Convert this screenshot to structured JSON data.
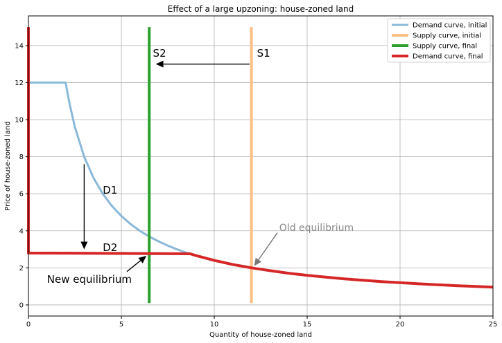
{
  "chart_data": {
    "type": "line",
    "title": "Effect of a large upzoning: house-zoned land",
    "xlabel": "Quantity of house-zoned land",
    "ylabel": "Price of house-zoned land",
    "xlim": [
      0,
      25
    ],
    "ylim": [
      -0.6,
      15.6
    ],
    "xticks": [
      0,
      5,
      10,
      15,
      20,
      25
    ],
    "yticks": [
      0,
      2,
      4,
      6,
      8,
      10,
      12,
      14
    ],
    "grid": true,
    "legend_position": "top-right",
    "series": [
      {
        "name": "Demand curve, initial",
        "color": "#8ab8d9",
        "width": 3,
        "x": [
          0,
          2.0,
          2.2,
          2.5,
          3.0,
          3.5,
          4.0,
          4.5,
          5.0,
          5.5,
          6.0,
          6.5,
          7.0,
          7.5,
          8.0,
          8.5,
          8.8
        ],
        "y": [
          12.0,
          12.0,
          10.91,
          9.6,
          8.0,
          6.86,
          6.0,
          5.33,
          4.8,
          4.36,
          4.0,
          3.69,
          3.43,
          3.2,
          3.0,
          2.82,
          2.75
        ]
      },
      {
        "name": "Supply curve, initial",
        "color": "#fdbf86",
        "width": 4,
        "x": [
          12,
          12
        ],
        "y": [
          0.1,
          15.0
        ]
      },
      {
        "name": "Supply curve, final",
        "color": "#2ca02c",
        "width": 4,
        "x": [
          6.5,
          6.5
        ],
        "y": [
          0.1,
          15.0
        ]
      },
      {
        "name": "Demand curve, final",
        "color": "#d62728",
        "width": 4,
        "x": [
          0,
          0,
          0,
          8.7,
          9.0,
          10.0,
          11.0,
          12.0,
          13.0,
          14.0,
          15.0,
          16.0,
          17.0,
          18.0,
          19.0,
          20.0,
          21.0,
          22.0,
          23.0,
          24.0,
          25.0
        ],
        "y": [
          15.0,
          2.8,
          2.8,
          2.76,
          2.67,
          2.4,
          2.18,
          2.0,
          1.85,
          1.71,
          1.6,
          1.5,
          1.41,
          1.33,
          1.26,
          1.2,
          1.14,
          1.09,
          1.04,
          1.0,
          0.96
        ]
      }
    ],
    "annotations": [
      {
        "text": "S1",
        "x": 12.3,
        "y": 13.4,
        "style": "big"
      },
      {
        "text": "S2",
        "x": 6.7,
        "y": 13.4,
        "style": "big"
      },
      {
        "text": "D1",
        "x": 4.0,
        "y": 6.0,
        "style": "big"
      },
      {
        "text": "D2",
        "x": 4.0,
        "y": 2.9,
        "style": "big"
      },
      {
        "text": "New equilibrium",
        "x": 1.0,
        "y": 1.2,
        "style": "big"
      },
      {
        "text": "Old equilibrium",
        "x": 13.5,
        "y": 4.0,
        "style": "grey"
      }
    ],
    "arrows": [
      {
        "from": [
          11.9,
          13.0
        ],
        "to": [
          6.85,
          13.0
        ],
        "color": "#000000"
      },
      {
        "from": [
          3.0,
          7.6
        ],
        "to": [
          3.0,
          3.0
        ],
        "color": "#000000"
      },
      {
        "from": [
          5.3,
          1.8
        ],
        "to": [
          6.35,
          2.65
        ],
        "color": "#000000"
      },
      {
        "from": [
          13.4,
          3.9
        ],
        "to": [
          12.15,
          2.1
        ],
        "color": "#777777"
      }
    ]
  }
}
